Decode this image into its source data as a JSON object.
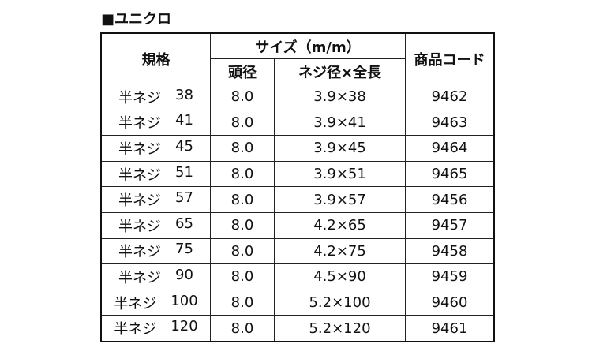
{
  "title": "■ユニクロ",
  "table": {
    "header": {
      "spec": "規格",
      "size": "サイズ（m/m）",
      "head": "頭径",
      "dims": "ネジ径×全長",
      "code": "商品コード"
    },
    "rows": [
      [
        "半ネジ",
        "38",
        "8.0",
        "3.9×38",
        "9462"
      ],
      [
        "半ネジ",
        "41",
        "8.0",
        "3.9×41",
        "9463"
      ],
      [
        "半ネジ",
        "45",
        "8.0",
        "3.9×45",
        "9464"
      ],
      [
        "半ネジ",
        "51",
        "8.0",
        "3.9×51",
        "9465"
      ],
      [
        "半ネジ",
        "57",
        "8.0",
        "3.9×57",
        "9456"
      ],
      [
        "半ネジ",
        "65",
        "8.0",
        "4.2×65",
        "9457"
      ],
      [
        "半ネジ",
        "75",
        "8.0",
        "4.2×75",
        "9458"
      ],
      [
        "半ネジ",
        "90",
        "8.0",
        "4.5×90",
        "9459"
      ],
      [
        "半ネジ",
        "100",
        "8.0",
        "5.2×100",
        "9460"
      ],
      [
        "半ネジ",
        "120",
        "8.0",
        "5.2×120",
        "9461"
      ]
    ]
  }
}
